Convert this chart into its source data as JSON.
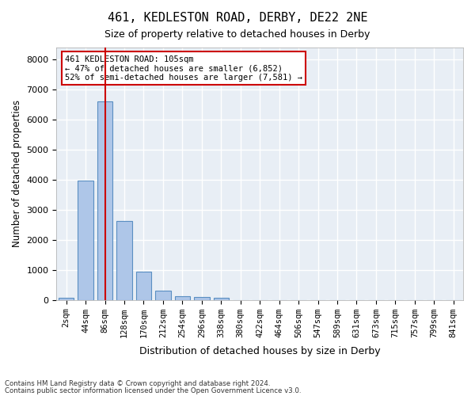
{
  "title1": "461, KEDLESTON ROAD, DERBY, DE22 2NE",
  "title2": "Size of property relative to detached houses in Derby",
  "xlabel": "Distribution of detached houses by size in Derby",
  "ylabel": "Number of detached properties",
  "footer1": "Contains HM Land Registry data © Crown copyright and database right 2024.",
  "footer2": "Contains public sector information licensed under the Open Government Licence v3.0.",
  "annotation_line1": "461 KEDLESTON ROAD: 105sqm",
  "annotation_line2": "← 47% of detached houses are smaller (6,852)",
  "annotation_line3": "52% of semi-detached houses are larger (7,581) →",
  "bar_values": [
    70,
    3980,
    6600,
    2620,
    950,
    310,
    130,
    100,
    80,
    0,
    0,
    0,
    0,
    0,
    0,
    0,
    0,
    0,
    0,
    0,
    0
  ],
  "bar_labels": [
    "2sqm",
    "44sqm",
    "86sqm",
    "128sqm",
    "170sqm",
    "212sqm",
    "254sqm",
    "296sqm",
    "338sqm",
    "380sqm",
    "422sqm",
    "464sqm",
    "506sqm",
    "547sqm",
    "589sqm",
    "631sqm",
    "673sqm",
    "715sqm",
    "757sqm",
    "799sqm",
    "841sqm"
  ],
  "bar_color": "#aec6e8",
  "bar_edge_color": "#5a8fc2",
  "vline_x": 2,
  "vline_color": "#cc0000",
  "ylim_max": 8400,
  "yticks": [
    0,
    1000,
    2000,
    3000,
    4000,
    5000,
    6000,
    7000,
    8000
  ],
  "bg_color": "#e8eef5",
  "annotation_box_color": "#cc0000",
  "grid_color": "white"
}
